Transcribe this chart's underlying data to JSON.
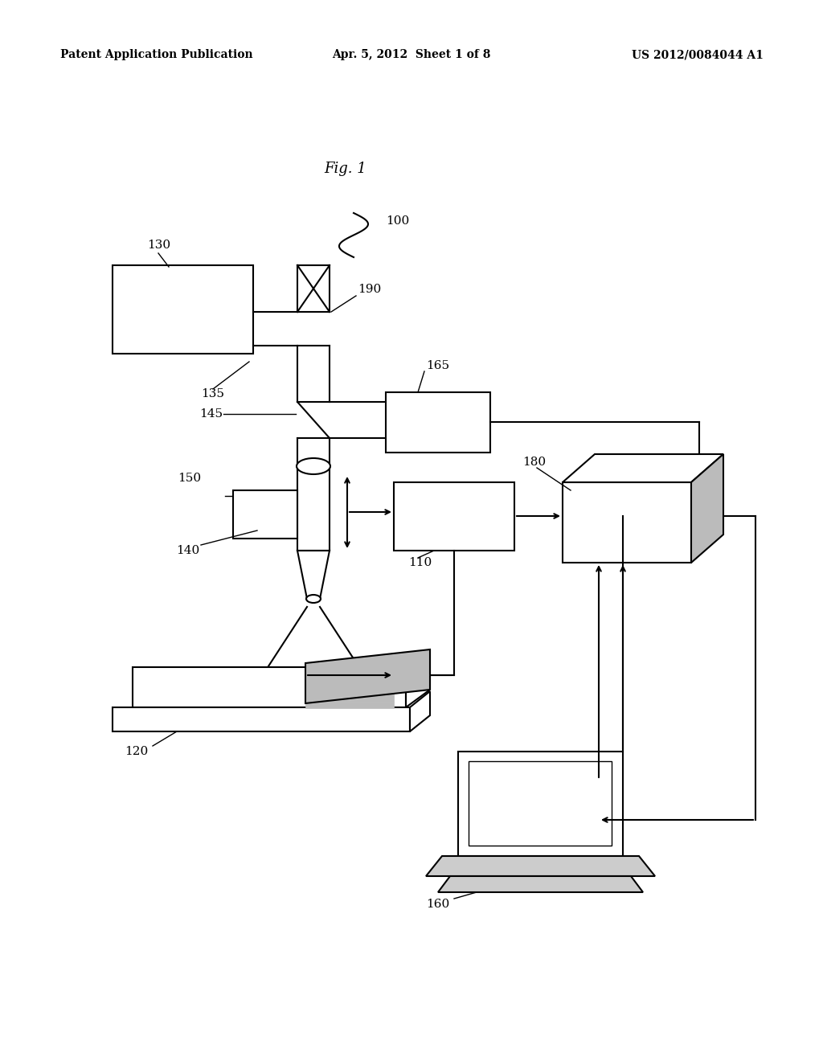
{
  "header_left": "Patent Application Publication",
  "header_center": "Apr. 5, 2012  Sheet 1 of 8",
  "header_right": "US 2012/0084044 A1",
  "background_color": "#ffffff",
  "line_color": "#000000",
  "gray_color": "#aaaaaa"
}
